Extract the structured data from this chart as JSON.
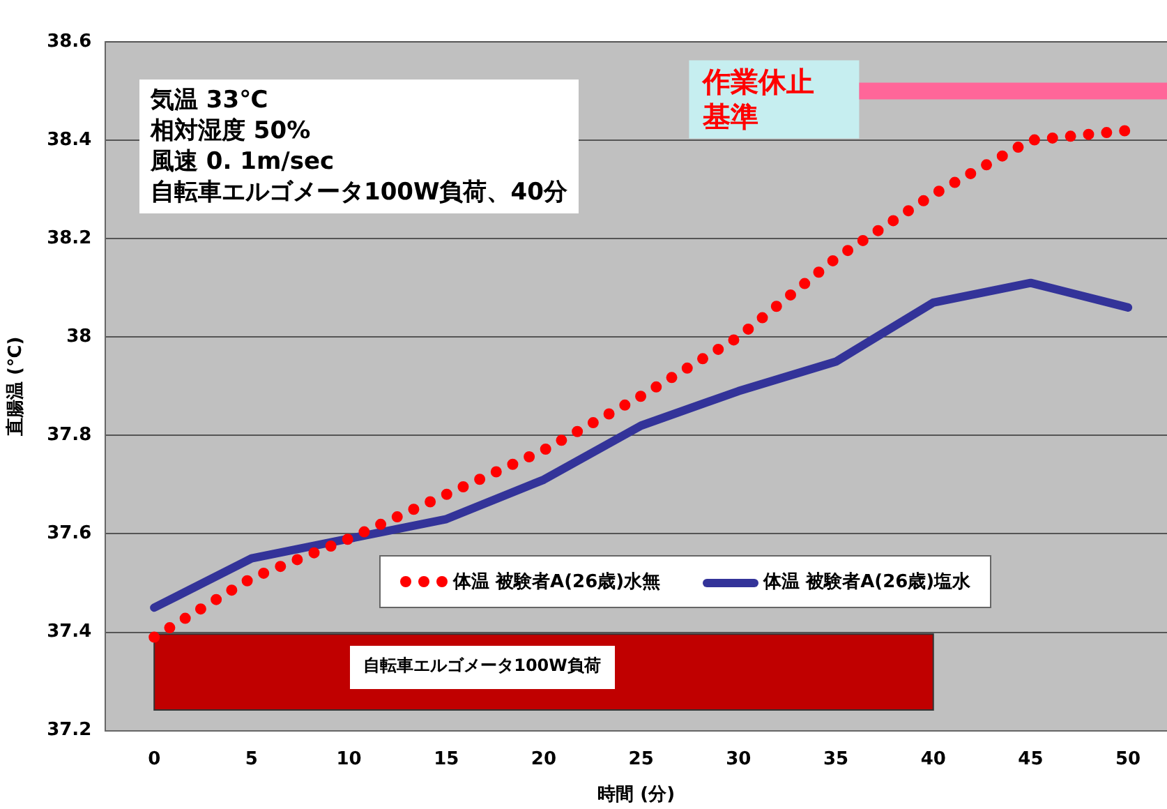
{
  "chart_data": {
    "type": "line",
    "xlabel": "時間 (分)",
    "ylabel": "直腸温 (℃)",
    "x": [
      0,
      5,
      10,
      15,
      20,
      25,
      30,
      35,
      40,
      45,
      50
    ],
    "xlim": [
      -2.5,
      52
    ],
    "xticks": [
      0,
      5,
      10,
      15,
      20,
      25,
      30,
      35,
      40,
      45,
      50
    ],
    "ylim": [
      37.2,
      38.6
    ],
    "yticks": [
      37.2,
      37.4,
      37.6,
      37.8,
      38,
      38.2,
      38.4,
      38.6
    ],
    "grid": "y",
    "legend": "bottom right",
    "marker": "none",
    "series": [
      {
        "name": "体温 被験者A(26歳)水無",
        "color": "#ff0000",
        "line_style": "dotted",
        "values": [
          37.39,
          37.51,
          37.59,
          37.68,
          37.77,
          37.88,
          38.0,
          38.16,
          38.29,
          38.4,
          38.42
        ]
      },
      {
        "name": "体温 被験者A(26歳)塩水",
        "color": "#333399",
        "line_style": "solid",
        "values": [
          37.45,
          37.55,
          37.59,
          37.63,
          37.71,
          37.82,
          37.89,
          37.95,
          38.07,
          38.11,
          38.06
        ]
      }
    ],
    "ref_lines": [
      {
        "axis": "y",
        "value": 38.5,
        "label": "作業休止基準",
        "color": "#ff6699"
      }
    ],
    "bands": [
      {
        "axis": "x",
        "from": 0,
        "to": 40,
        "label": "自転車エルゴメータ100W負荷",
        "color": "#c00000"
      }
    ],
    "annotations": [
      "気温 33℃",
      "相対湿度 50%",
      "風速 0. 1m/sec",
      "自転車エルゴメータ100W負荷、40分"
    ]
  }
}
